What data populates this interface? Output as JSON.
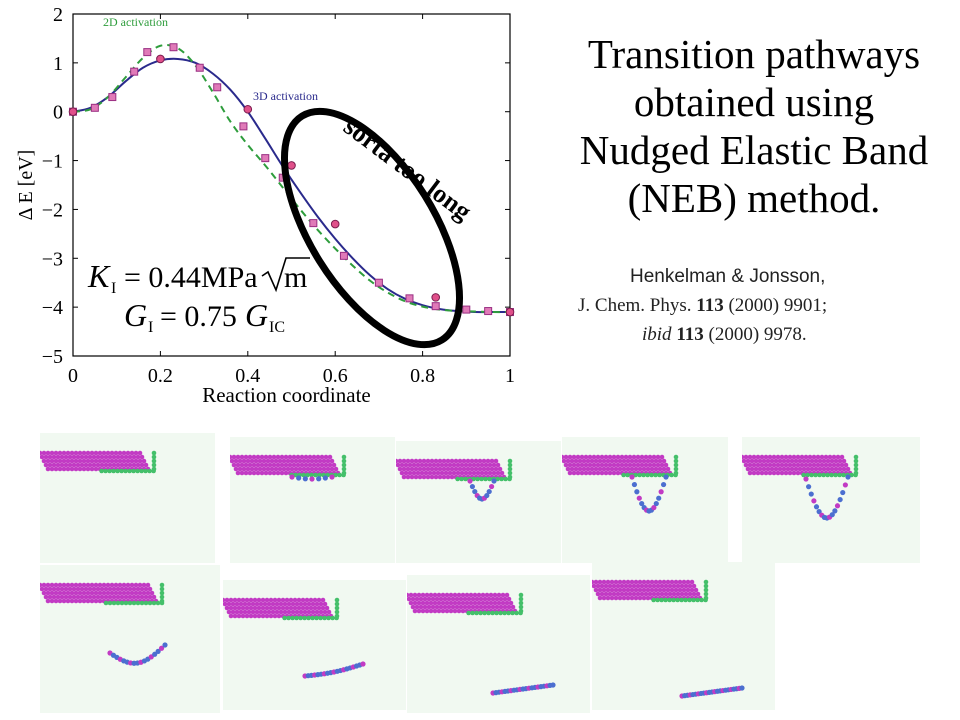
{
  "title": {
    "lines": [
      "Transition pathways",
      "obtained using",
      "Nudged Elastic Band",
      "(NEB) method."
    ]
  },
  "citation": {
    "line1": "Henkelman & Jonsson,",
    "line2_prefix": "J. Chem. Phys. ",
    "line2_vol": "113",
    "line2_rest": " (2000) 9901;",
    "line3_ibid": "ibid",
    "line3_space": " ",
    "line3_vol": "113",
    "line3_rest": " (2000) 9978."
  },
  "annotation": {
    "text": "sorta too long"
  },
  "equations": {
    "eq1": "K_I = 0.44 MPa·√m",
    "eq2": "G_I = 0.75 G_IC"
  },
  "chart_data": {
    "type": "line",
    "xlabel": "Reaction coordinate",
    "ylabel": "Δ E [eV]",
    "xlim": [
      0,
      1
    ],
    "ylim": [
      -5,
      2
    ],
    "xticks": [
      "0",
      "0.2",
      "0.4",
      "0.6",
      "0.8",
      "1"
    ],
    "yticks": [
      "−5",
      "−4",
      "−3",
      "−2",
      "−1",
      "0",
      "1",
      "2"
    ],
    "series": [
      {
        "name": "3D activation",
        "color": "#2a2a8c",
        "style": "solid",
        "marker": "circle",
        "x": [
          0,
          0.04,
          0.08,
          0.12,
          0.16,
          0.2,
          0.24,
          0.28,
          0.32,
          0.36,
          0.4,
          0.44,
          0.48,
          0.52,
          0.56,
          0.6,
          0.64,
          0.68,
          0.72,
          0.76,
          0.8,
          0.84,
          0.88,
          0.92,
          0.96,
          1.0
        ],
        "y": [
          0,
          0.08,
          0.3,
          0.62,
          0.9,
          1.05,
          1.08,
          1.0,
          0.78,
          0.45,
          0.0,
          -0.55,
          -1.12,
          -1.65,
          -2.15,
          -2.6,
          -3.0,
          -3.35,
          -3.63,
          -3.83,
          -3.96,
          -4.04,
          -4.08,
          -4.1,
          -4.1,
          -4.1
        ]
      },
      {
        "name": "2D activation",
        "color": "#2e9d3c",
        "style": "dashed",
        "marker": "square",
        "x": [
          0,
          0.04,
          0.08,
          0.12,
          0.16,
          0.2,
          0.24,
          0.28,
          0.32,
          0.36,
          0.4,
          0.44,
          0.48,
          0.52,
          0.56,
          0.6,
          0.64,
          0.68,
          0.72,
          0.76,
          0.8,
          0.84,
          0.88,
          0.92,
          0.96,
          1.0
        ],
        "y": [
          0,
          0.05,
          0.3,
          0.7,
          1.1,
          1.35,
          1.3,
          0.95,
          0.4,
          -0.2,
          -0.68,
          -1.1,
          -1.55,
          -2.0,
          -2.42,
          -2.8,
          -3.15,
          -3.46,
          -3.7,
          -3.88,
          -3.99,
          -4.05,
          -4.08,
          -4.09,
          -4.1,
          -4.1
        ]
      }
    ],
    "markers": {
      "circles": [
        [
          0,
          0
        ],
        [
          0.2,
          1.08
        ],
        [
          0.4,
          0.05
        ],
        [
          0.5,
          -1.1
        ],
        [
          0.6,
          -2.3
        ],
        [
          0.83,
          -3.8
        ],
        [
          1.0,
          -4.1
        ]
      ],
      "squares": [
        [
          0,
          0
        ],
        [
          0.05,
          0.08
        ],
        [
          0.09,
          0.3
        ],
        [
          0.14,
          0.82
        ],
        [
          0.17,
          1.22
        ],
        [
          0.23,
          1.32
        ],
        [
          0.29,
          0.9
        ],
        [
          0.33,
          0.5
        ],
        [
          0.39,
          -0.3
        ],
        [
          0.44,
          -0.95
        ],
        [
          0.48,
          -1.35
        ],
        [
          0.55,
          -2.28
        ],
        [
          0.62,
          -2.95
        ],
        [
          0.7,
          -3.5
        ],
        [
          0.77,
          -3.82
        ],
        [
          0.83,
          -3.98
        ],
        [
          0.9,
          -4.05
        ],
        [
          0.95,
          -4.08
        ],
        [
          1.0,
          -4.1
        ]
      ]
    },
    "grid": false
  },
  "colors": {
    "panel_bg": "#f1f9f1",
    "slab_magenta": "#c23bc4",
    "slab_green": "#44c06a",
    "dislocation_blue": "#4c6fd0",
    "ellipse": "#000000"
  },
  "images_row": {
    "count_top": 5,
    "count_bottom": 4
  }
}
